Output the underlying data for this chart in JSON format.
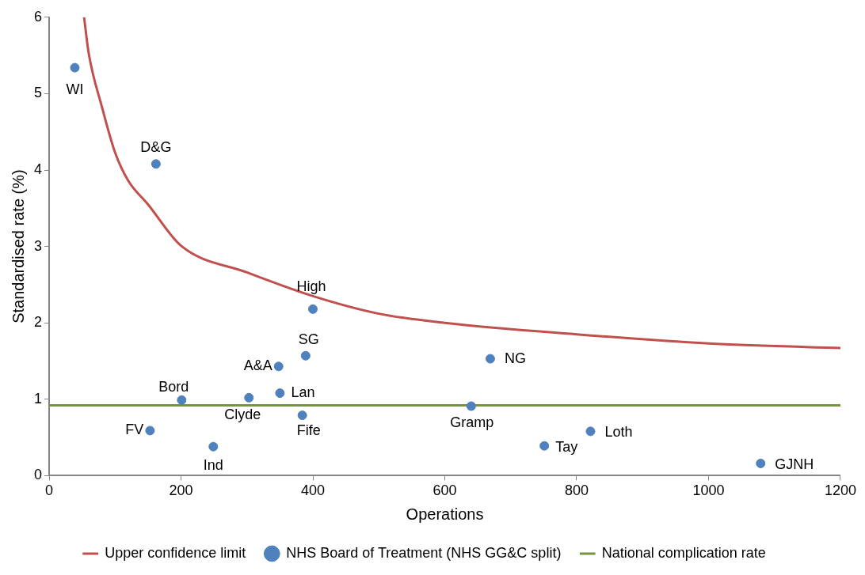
{
  "chart_data": {
    "type": "scatter",
    "xlabel": "Operations",
    "ylabel": "Standardised rate (%)",
    "xlim": [
      0,
      1200
    ],
    "xticks": [
      0,
      200,
      400,
      600,
      800,
      1000,
      1200
    ],
    "ylim": [
      0,
      6
    ],
    "yticks": [
      0,
      1,
      2,
      3,
      4,
      5,
      6
    ],
    "grid": false,
    "legend": "bottom",
    "series": [
      {
        "name": "Upper confidence limit",
        "type": "line",
        "marker": "none",
        "color": "#c0504d",
        "x": [
          53,
          60,
          80,
          100,
          120,
          150,
          200,
          300,
          400,
          500,
          600,
          800,
          1000,
          1200
        ],
        "values": [
          6,
          5.53,
          4.83,
          4.23,
          3.86,
          3.55,
          3.01,
          2.66,
          2.35,
          2.12,
          2.0,
          1.85,
          1.73,
          1.67
        ]
      },
      {
        "name": "NHS Board of Treatment (NHS GG&C split)",
        "marker": "circle",
        "color": "#4f81bd",
        "x": [
          39,
          162,
          400,
          389,
          348,
          350,
          201,
          303,
          384,
          153,
          249,
          669,
          640,
          821,
          751,
          1079
        ],
        "values": [
          5.34,
          4.08,
          2.18,
          1.57,
          1.43,
          1.08,
          0.99,
          1.02,
          0.79,
          0.59,
          0.38,
          1.53,
          0.91,
          0.58,
          0.39,
          0.16
        ]
      },
      {
        "name": "National complication rate",
        "type": "line",
        "marker": "none",
        "color": "#77933c",
        "x": [
          0,
          1200
        ],
        "values": [
          0.92,
          0.92
        ]
      }
    ],
    "annotations": [
      {
        "text": "WI",
        "x": 39,
        "y": 5.34
      },
      {
        "text": "D&G",
        "x": 162,
        "y": 4.08
      },
      {
        "text": "High",
        "x": 400,
        "y": 2.18
      },
      {
        "text": "SG",
        "x": 389,
        "y": 1.57
      },
      {
        "text": "A&A",
        "x": 348,
        "y": 1.43
      },
      {
        "text": "Lan",
        "x": 350,
        "y": 1.08
      },
      {
        "text": "Bord",
        "x": 201,
        "y": 0.99
      },
      {
        "text": "Clyde",
        "x": 303,
        "y": 1.02
      },
      {
        "text": "Fife",
        "x": 384,
        "y": 0.79
      },
      {
        "text": "FV",
        "x": 153,
        "y": 0.59
      },
      {
        "text": "Ind",
        "x": 249,
        "y": 0.38
      },
      {
        "text": "NG",
        "x": 669,
        "y": 1.53
      },
      {
        "text": "Gramp",
        "x": 640,
        "y": 0.91
      },
      {
        "text": "Loth",
        "x": 821,
        "y": 0.58
      },
      {
        "text": "Tay",
        "x": 751,
        "y": 0.39
      },
      {
        "text": "GJNH",
        "x": 1079,
        "y": 0.16
      }
    ]
  }
}
